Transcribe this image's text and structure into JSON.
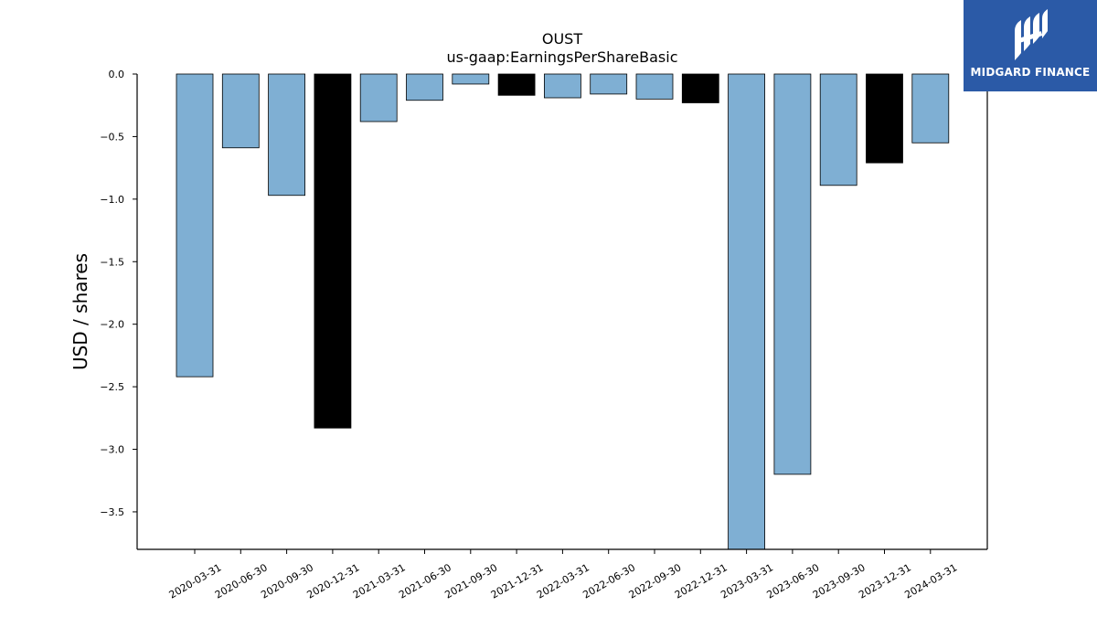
{
  "chart_data": {
    "type": "bar",
    "title": "OUST",
    "subtitle": "us-gaap:EarningsPerShareBasic",
    "xlabel": "",
    "ylabel": "USD / shares",
    "ylim": [
      -3.8,
      0.0
    ],
    "yticks": [
      0.0,
      -0.5,
      -1.0,
      -1.5,
      -2.0,
      -2.5,
      -3.0,
      -3.5
    ],
    "ytick_labels": [
      "0.0",
      "−0.5",
      "−1.0",
      "−1.5",
      "−2.0",
      "−2.5",
      "−3.0",
      "−3.5"
    ],
    "categories": [
      "2020-03-31",
      "2020-06-30",
      "2020-09-30",
      "2020-12-31",
      "2021-03-31",
      "2021-06-30",
      "2021-09-30",
      "2021-12-31",
      "2022-03-31",
      "2022-06-30",
      "2022-09-30",
      "2022-12-31",
      "2023-03-31",
      "2023-06-30",
      "2023-09-30",
      "2023-12-31",
      "2024-03-31"
    ],
    "values": [
      -2.42,
      -0.59,
      -0.97,
      -2.83,
      -0.38,
      -0.21,
      -0.08,
      -0.17,
      -0.19,
      -0.16,
      -0.2,
      -0.23,
      -3.8,
      -3.2,
      -0.89,
      -0.71,
      -0.55
    ],
    "bar_colors": [
      "#7fafd3",
      "#7fafd3",
      "#7fafd3",
      "#000000",
      "#7fafd3",
      "#7fafd3",
      "#7fafd3",
      "#000000",
      "#7fafd3",
      "#7fafd3",
      "#7fafd3",
      "#000000",
      "#7fafd3",
      "#7fafd3",
      "#7fafd3",
      "#000000",
      "#7fafd3"
    ],
    "grid": false,
    "legend": "none"
  },
  "logo": {
    "text": "MIDGARD FINANCE",
    "background": "#2b5aa7",
    "icon": "midgard-logo-icon"
  }
}
